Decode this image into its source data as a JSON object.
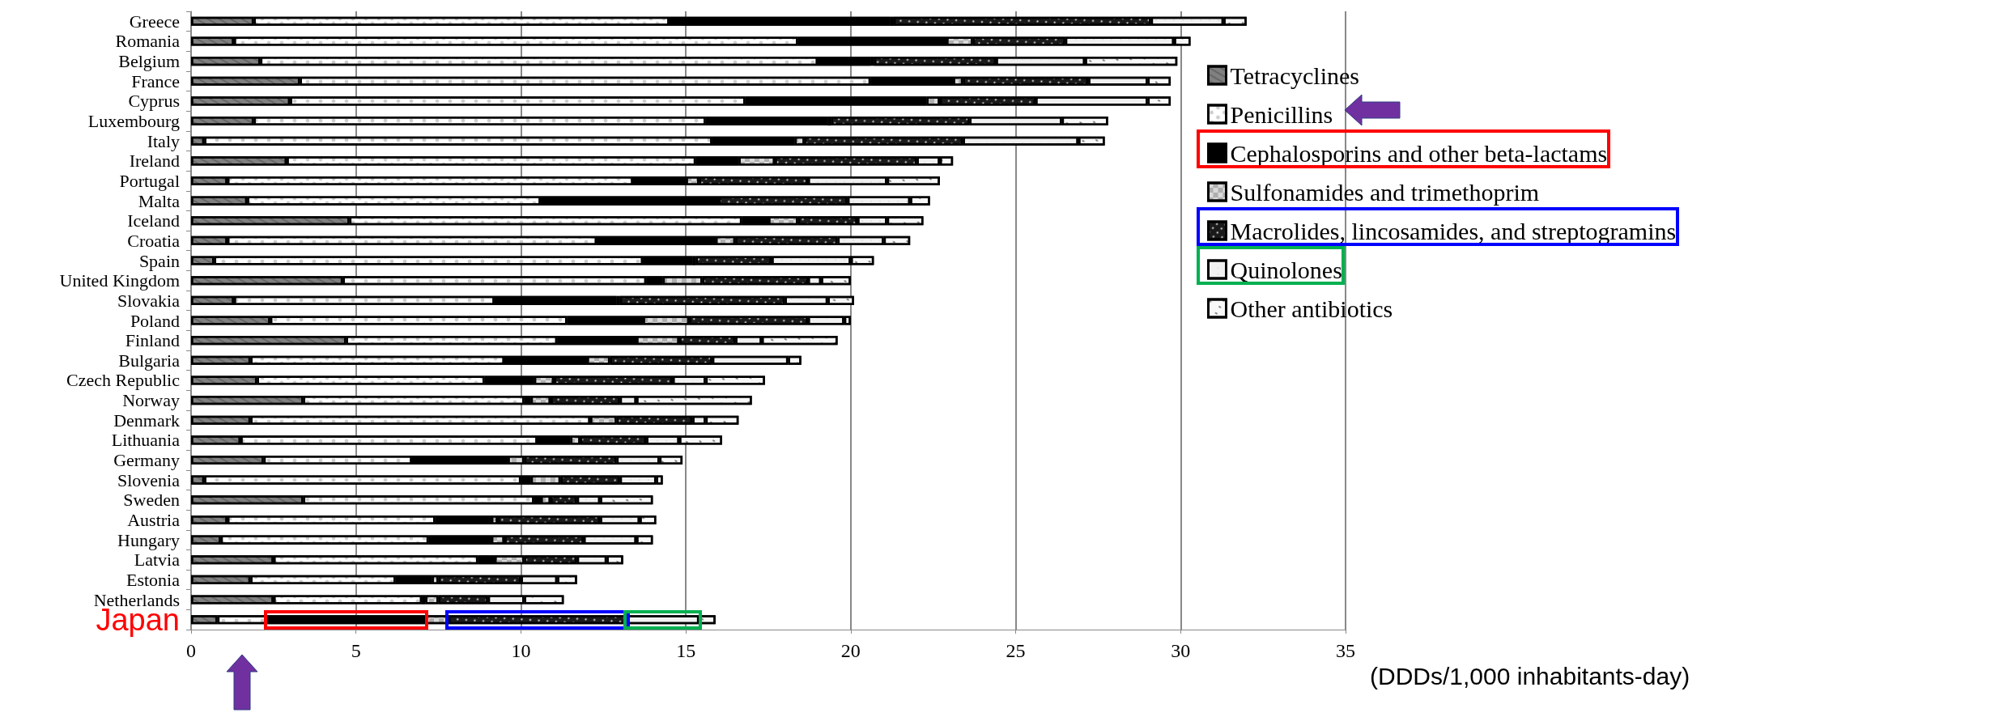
{
  "chart_data": {
    "type": "bar",
    "orientation": "horizontal",
    "stacked": true,
    "xlabel": "(DDDs/1,000 inhabitants-day)",
    "categories": [
      "Greece",
      "Romania",
      "Belgium",
      "France",
      "Cyprus",
      "Luxembourg",
      "Italy",
      "Ireland",
      "Portugal",
      "Malta",
      "Iceland",
      "Croatia",
      "Spain",
      "United Kingdom",
      "Slovakia",
      "Poland",
      "Finland",
      "Bulgaria",
      "Czech Republic",
      "Norway",
      "Denmark",
      "Lithuania",
      "Germany",
      "Slovenia",
      "Sweden",
      "Austria",
      "Hungary",
      "Latvia",
      "Estonia",
      "Netherlands",
      "Japan"
    ],
    "series": [
      {
        "name": "Tetracyclines",
        "color": "#808080",
        "values": [
          1.9,
          1.3,
          2.1,
          3.3,
          3.0,
          1.9,
          0.4,
          2.9,
          1.1,
          1.7,
          4.8,
          1.1,
          0.7,
          4.6,
          1.3,
          2.4,
          4.7,
          1.8,
          2.0,
          3.4,
          1.8,
          1.5,
          2.2,
          0.4,
          3.4,
          1.1,
          0.9,
          2.5,
          1.8,
          2.5,
          0.8
        ]
      },
      {
        "name": "Penicillins",
        "color": "#ffffff",
        "values": [
          12.6,
          17.1,
          16.9,
          17.3,
          13.8,
          13.7,
          15.4,
          12.4,
          12.3,
          8.9,
          11.9,
          11.2,
          13.0,
          9.2,
          7.9,
          9.0,
          6.4,
          7.7,
          6.9,
          6.7,
          10.3,
          9.0,
          4.5,
          9.6,
          7.0,
          6.3,
          6.3,
          6.2,
          4.4,
          4.5,
          1.5
        ]
      },
      {
        "name": "Cephalosporins and other beta-lactams",
        "color": "#000000",
        "values": [
          6.7,
          4.5,
          1.6,
          2.5,
          5.5,
          3.7,
          2.5,
          1.3,
          1.6,
          5.4,
          0.8,
          3.6,
          1.5,
          0.5,
          3.7,
          2.3,
          2.4,
          2.5,
          1.5,
          0.2,
          0,
          1.0,
          2.9,
          0.3,
          0.2,
          1.7,
          1.9,
          0.5,
          1.1,
          0.1,
          4.8
        ]
      },
      {
        "name": "Sulfonamides and trimethoprim",
        "color": "#d9d9d9",
        "values": [
          0.1,
          0.8,
          0.1,
          0.3,
          0.4,
          0.1,
          0.3,
          1.1,
          0.4,
          0,
          0.9,
          0.6,
          0.1,
          1.2,
          0.1,
          1.4,
          1.3,
          0.7,
          0.6,
          0.6,
          0.8,
          0.3,
          0.5,
          0.9,
          0.3,
          0.2,
          0.4,
          0.9,
          0.2,
          0.4,
          0.7
        ]
      },
      {
        "name": "Macrolides, lincosamides, and streptogramins",
        "color": "#1a1a1a",
        "values": [
          7.8,
          2.8,
          3.7,
          3.8,
          2.9,
          4.2,
          4.8,
          4.3,
          3.3,
          3.9,
          1.8,
          3.1,
          2.3,
          3.2,
          5.0,
          3.6,
          1.7,
          3.1,
          3.6,
          2.1,
          2.3,
          2.0,
          2.8,
          1.8,
          0.8,
          3.1,
          2.4,
          1.6,
          2.5,
          1.5,
          5.4
        ]
      },
      {
        "name": "Quinolones",
        "color": "#f0f0f0",
        "values": [
          2.2,
          3.3,
          2.7,
          1.8,
          3.4,
          2.8,
          3.5,
          0.7,
          2.4,
          1.9,
          0.9,
          1.4,
          2.4,
          0.4,
          1.3,
          1.1,
          0.8,
          2.3,
          1.0,
          0.5,
          0.4,
          1.0,
          1.3,
          1.1,
          0.7,
          1.2,
          1.6,
          0.9,
          1.1,
          1.1,
          2.2
        ]
      },
      {
        "name": "Other antibiotics",
        "color": "#f8f8f8",
        "values": [
          0.7,
          0.5,
          2.8,
          0.7,
          0.7,
          1.4,
          0.8,
          0.4,
          1.6,
          0.6,
          1.1,
          0.8,
          0.7,
          0.9,
          0.8,
          0.2,
          2.3,
          0.4,
          1.8,
          3.5,
          1.0,
          1.3,
          0.7,
          0.2,
          1.6,
          0.5,
          0.5,
          0.5,
          0.6,
          1.2,
          0.5
        ]
      }
    ],
    "xlim": [
      0,
      35
    ],
    "xticks": [
      0,
      5,
      10,
      15,
      20,
      25,
      30,
      35
    ],
    "grid": "x",
    "legend": "right"
  }
}
